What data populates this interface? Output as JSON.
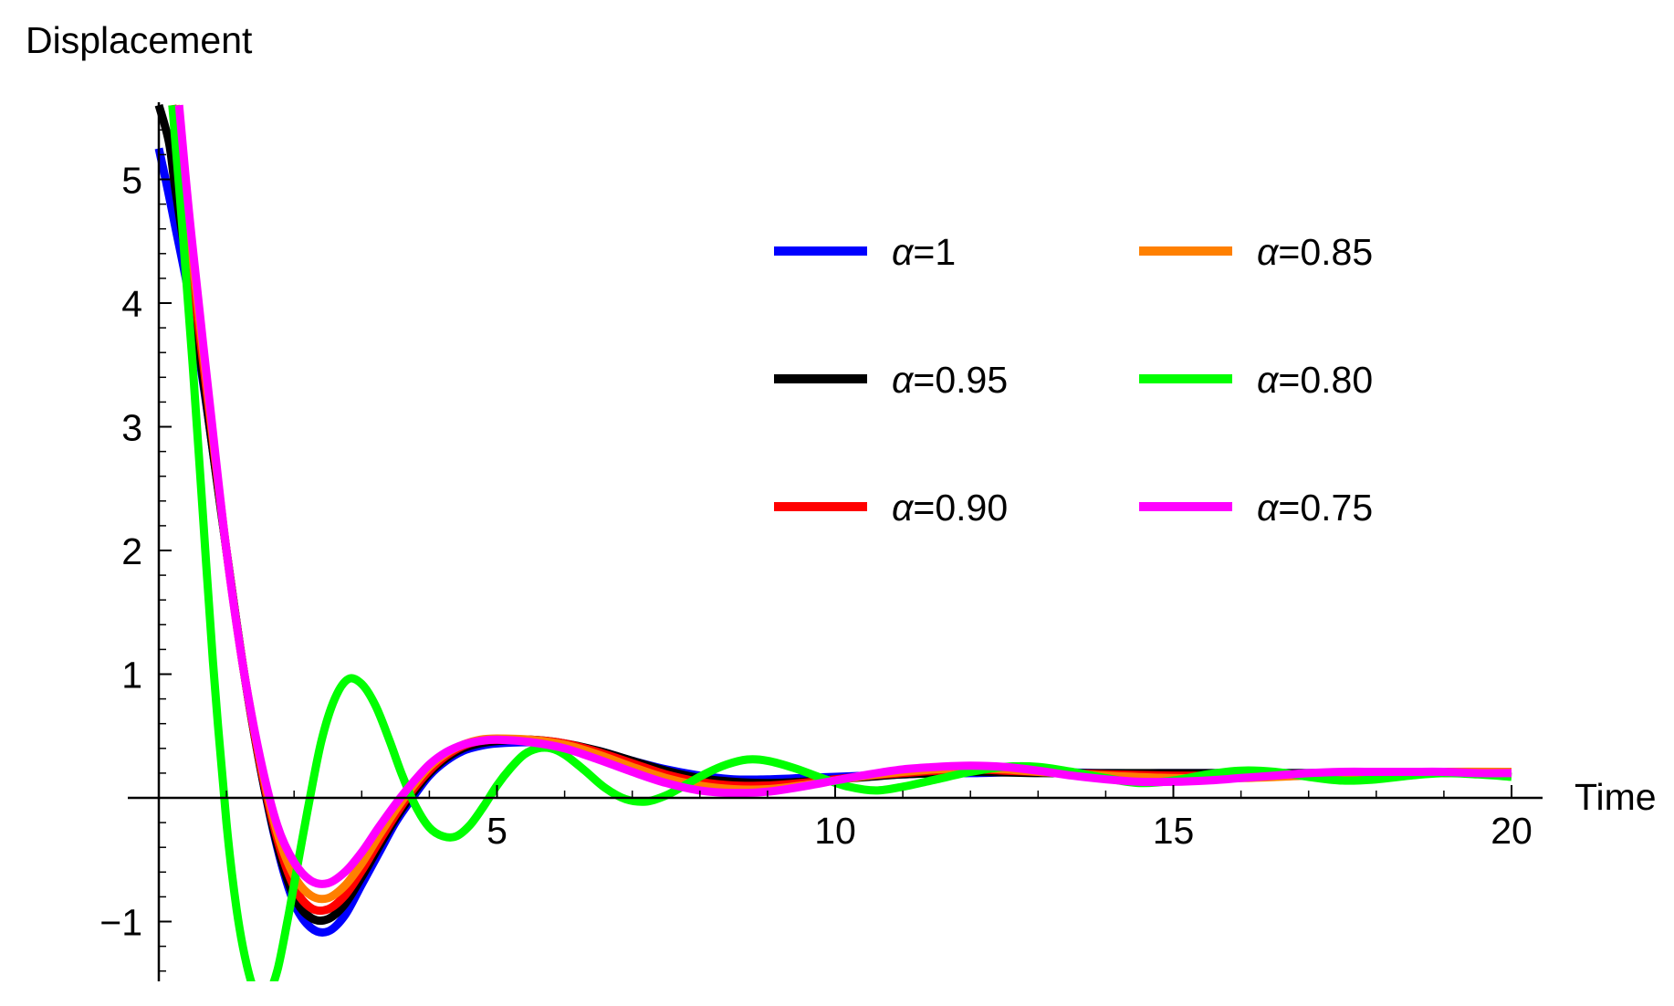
{
  "chart_data": {
    "type": "line",
    "xlabel": "Time",
    "ylabel": "Displacement",
    "xlim": [
      0,
      20.4
    ],
    "ylim": [
      -1.45,
      5.6
    ],
    "xticks": [
      5,
      10,
      15,
      20
    ],
    "yticks": [
      -1,
      1,
      2,
      3,
      4,
      5
    ],
    "xtick_labels": [
      "5",
      "10",
      "15",
      "20"
    ],
    "ytick_labels": [
      "−1",
      "1",
      "2",
      "3",
      "4",
      "5"
    ],
    "grid": false,
    "legend_position": "top-right",
    "series": [
      {
        "name": "α=1",
        "color": "#0000ff",
        "x": [
          0,
          0.1,
          0.25,
          0.5,
          0.75,
          1.0,
          1.25,
          1.5,
          1.75,
          2.0,
          2.25,
          2.5,
          2.75,
          3.0,
          3.25,
          3.5,
          3.75,
          4.0,
          4.25,
          4.5,
          4.75,
          5.0,
          5.5,
          6.0,
          6.5,
          7.0,
          7.5,
          8.0,
          8.5,
          9.0,
          9.5,
          10,
          10.5,
          11,
          11.5,
          12,
          13,
          14,
          15,
          16,
          17,
          18,
          19,
          20
        ],
        "y": [
          5.25,
          5.0,
          4.6,
          3.9,
          3.0,
          2.0,
          1.05,
          0.25,
          -0.4,
          -0.85,
          -1.05,
          -1.08,
          -0.95,
          -0.7,
          -0.45,
          -0.2,
          0.0,
          0.18,
          0.3,
          0.38,
          0.42,
          0.44,
          0.45,
          0.43,
          0.38,
          0.3,
          0.23,
          0.18,
          0.15,
          0.15,
          0.16,
          0.17,
          0.18,
          0.19,
          0.2,
          0.2,
          0.21,
          0.2,
          0.2,
          0.2,
          0.2,
          0.2,
          0.2,
          0.2
        ]
      },
      {
        "name": "α=0.95",
        "color": "#000000",
        "x": [
          0,
          0.15,
          0.25,
          0.5,
          0.75,
          1.0,
          1.25,
          1.5,
          1.75,
          2.0,
          2.25,
          2.5,
          2.75,
          3.0,
          3.25,
          3.5,
          3.75,
          4.0,
          4.25,
          4.5,
          4.75,
          5.0,
          5.5,
          6.0,
          6.5,
          7.0,
          7.5,
          8.0,
          8.5,
          9.0,
          9.5,
          10,
          10.5,
          11,
          11.5,
          12,
          13,
          14,
          15,
          16,
          17,
          18,
          19,
          20
        ],
        "y": [
          5.6,
          5.3,
          4.9,
          4.0,
          3.0,
          2.0,
          1.05,
          0.25,
          -0.38,
          -0.8,
          -0.97,
          -0.98,
          -0.86,
          -0.64,
          -0.4,
          -0.17,
          0.03,
          0.2,
          0.32,
          0.4,
          0.44,
          0.46,
          0.47,
          0.44,
          0.38,
          0.3,
          0.22,
          0.16,
          0.13,
          0.12,
          0.13,
          0.15,
          0.17,
          0.19,
          0.2,
          0.21,
          0.2,
          0.2,
          0.2,
          0.2,
          0.2,
          0.2,
          0.2,
          0.2
        ]
      },
      {
        "name": "α=0.90",
        "color": "#ff0000",
        "x": [
          0.2,
          0.3,
          0.5,
          0.75,
          1.0,
          1.25,
          1.5,
          1.75,
          2.0,
          2.25,
          2.5,
          2.75,
          3.0,
          3.25,
          3.5,
          3.75,
          4.0,
          4.25,
          4.5,
          4.75,
          5.0,
          5.5,
          6.0,
          6.5,
          7.0,
          7.5,
          8.0,
          8.5,
          9.0,
          9.5,
          10,
          10.5,
          11,
          11.5,
          12,
          12.5,
          13,
          14,
          15,
          16,
          17,
          18,
          19,
          20
        ],
        "y": [
          5.6,
          5.2,
          4.2,
          3.1,
          2.0,
          1.05,
          0.27,
          -0.33,
          -0.72,
          -0.89,
          -0.9,
          -0.79,
          -0.59,
          -0.36,
          -0.14,
          0.06,
          0.22,
          0.34,
          0.42,
          0.46,
          0.47,
          0.47,
          0.44,
          0.37,
          0.28,
          0.19,
          0.13,
          0.1,
          0.1,
          0.12,
          0.15,
          0.18,
          0.2,
          0.22,
          0.23,
          0.22,
          0.21,
          0.19,
          0.18,
          0.18,
          0.19,
          0.2,
          0.2,
          0.2
        ]
      },
      {
        "name": "α=0.85",
        "color": "#ff8000",
        "x": [
          0.25,
          0.35,
          0.5,
          0.75,
          1.0,
          1.25,
          1.5,
          1.75,
          2.0,
          2.25,
          2.5,
          2.75,
          3.0,
          3.25,
          3.5,
          3.75,
          4.0,
          4.25,
          4.5,
          4.75,
          5.0,
          5.5,
          6.0,
          6.5,
          7.0,
          7.5,
          8.0,
          8.5,
          9.0,
          9.5,
          10,
          10.5,
          11,
          11.5,
          12,
          12.5,
          13,
          14,
          15,
          16,
          17,
          18,
          19,
          20
        ],
        "y": [
          5.6,
          5.1,
          4.35,
          3.15,
          2.0,
          1.05,
          0.3,
          -0.28,
          -0.63,
          -0.79,
          -0.81,
          -0.71,
          -0.53,
          -0.31,
          -0.1,
          0.09,
          0.25,
          0.36,
          0.43,
          0.47,
          0.48,
          0.47,
          0.43,
          0.35,
          0.25,
          0.16,
          0.1,
          0.07,
          0.07,
          0.1,
          0.14,
          0.18,
          0.21,
          0.23,
          0.24,
          0.23,
          0.21,
          0.18,
          0.16,
          0.16,
          0.18,
          0.2,
          0.21,
          0.21
        ]
      },
      {
        "name": "α=0.80",
        "color": "#00ff00",
        "x": [
          0.2,
          0.35,
          0.5,
          0.65,
          0.8,
          1.0,
          1.15,
          1.3,
          1.45,
          1.6,
          1.75,
          1.9,
          2.0,
          2.2,
          2.4,
          2.6,
          2.8,
          3.0,
          3.2,
          3.4,
          3.6,
          3.8,
          4.0,
          4.2,
          4.4,
          4.6,
          4.8,
          5.0,
          5.2,
          5.4,
          5.6,
          5.8,
          6.0,
          6.3,
          6.6,
          6.9,
          7.2,
          7.5,
          7.8,
          8.1,
          8.4,
          8.7,
          9.0,
          9.4,
          9.8,
          10.2,
          10.6,
          11.0,
          11.5,
          12.0,
          12.5,
          13.0,
          13.5,
          14.0,
          14.5,
          15.0,
          15.5,
          16.0,
          16.5,
          17.0,
          17.5,
          18.0,
          18.5,
          19.0,
          19.5,
          20.0
        ],
        "y": [
          5.6,
          4.6,
          3.5,
          2.3,
          1.1,
          -0.2,
          -0.9,
          -1.35,
          -1.6,
          -1.6,
          -1.4,
          -1.0,
          -0.7,
          -0.1,
          0.45,
          0.8,
          0.96,
          0.92,
          0.75,
          0.48,
          0.18,
          -0.07,
          -0.24,
          -0.31,
          -0.31,
          -0.22,
          -0.07,
          0.1,
          0.24,
          0.35,
          0.4,
          0.4,
          0.35,
          0.22,
          0.08,
          -0.01,
          -0.03,
          0.02,
          0.11,
          0.2,
          0.27,
          0.31,
          0.3,
          0.24,
          0.16,
          0.09,
          0.06,
          0.09,
          0.15,
          0.21,
          0.25,
          0.25,
          0.21,
          0.16,
          0.12,
          0.14,
          0.19,
          0.22,
          0.21,
          0.17,
          0.14,
          0.15,
          0.18,
          0.2,
          0.19,
          0.17
        ]
      },
      {
        "name": "α=0.75",
        "color": "#ff00ff",
        "x": [
          0.3,
          0.4,
          0.5,
          0.75,
          1.0,
          1.25,
          1.5,
          1.75,
          2.0,
          2.25,
          2.5,
          2.75,
          3.0,
          3.25,
          3.5,
          3.75,
          4.0,
          4.25,
          4.5,
          4.75,
          5.0,
          5.5,
          6.0,
          6.5,
          7.0,
          7.5,
          8.0,
          8.5,
          9.0,
          9.5,
          10,
          10.5,
          11,
          11.5,
          12,
          12.5,
          13,
          13.5,
          14,
          14.5,
          15,
          15.5,
          16,
          16.5,
          17,
          17.5,
          18,
          18.5,
          19,
          19.5,
          20
        ],
        "y": [
          5.6,
          5.0,
          4.45,
          3.2,
          2.0,
          1.05,
          0.32,
          -0.22,
          -0.52,
          -0.67,
          -0.69,
          -0.6,
          -0.44,
          -0.24,
          -0.05,
          0.12,
          0.27,
          0.37,
          0.43,
          0.46,
          0.47,
          0.45,
          0.4,
          0.31,
          0.21,
          0.12,
          0.06,
          0.04,
          0.05,
          0.09,
          0.14,
          0.19,
          0.23,
          0.25,
          0.26,
          0.25,
          0.22,
          0.18,
          0.15,
          0.13,
          0.13,
          0.14,
          0.16,
          0.18,
          0.2,
          0.21,
          0.21,
          0.21,
          0.21,
          0.2,
          0.2
        ]
      }
    ]
  }
}
